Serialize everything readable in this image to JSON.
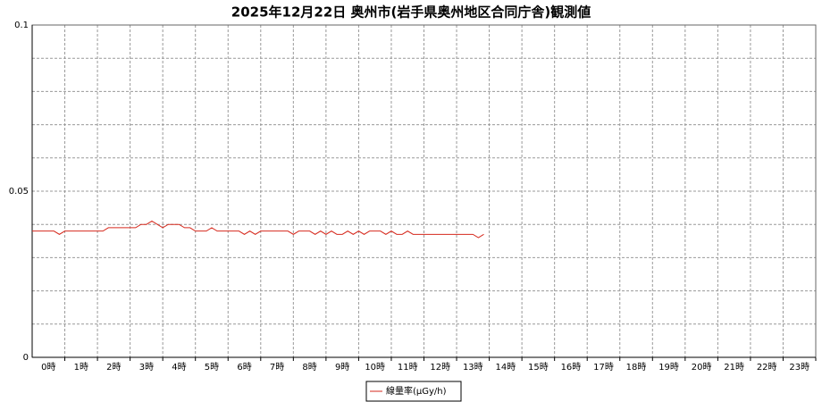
{
  "chart_data": {
    "type": "line",
    "title": "2025年12月22日 奥州市(岩手県奥州地区合同庁舎)観測値",
    "categories": [
      "0時",
      "1時",
      "2時",
      "3時",
      "4時",
      "5時",
      "6時",
      "7時",
      "8時",
      "9時",
      "10時",
      "11時",
      "12時",
      "13時",
      "14時",
      "15時",
      "16時",
      "17時",
      "18時",
      "19時",
      "20時",
      "21時",
      "22時",
      "23時"
    ],
    "xlim": [
      0,
      1440
    ],
    "x": [
      0,
      10,
      20,
      30,
      40,
      50,
      60,
      70,
      80,
      90,
      100,
      110,
      120,
      130,
      140,
      150,
      160,
      170,
      180,
      190,
      200,
      210,
      220,
      230,
      240,
      250,
      260,
      270,
      280,
      290,
      300,
      310,
      320,
      330,
      340,
      350,
      360,
      370,
      380,
      390,
      400,
      410,
      420,
      430,
      440,
      450,
      460,
      470,
      480,
      490,
      500,
      510,
      520,
      530,
      540,
      550,
      560,
      570,
      580,
      590,
      600,
      610,
      620,
      630,
      640,
      650,
      660,
      670,
      680,
      690,
      700,
      710,
      720,
      730,
      740,
      750,
      760,
      770,
      780,
      790,
      800,
      810,
      820,
      830
    ],
    "series": [
      {
        "name": "線量率(μGy/h)",
        "color": "#d62a1e",
        "values": [
          0.038,
          0.038,
          0.038,
          0.038,
          0.038,
          0.037,
          0.038,
          0.038,
          0.038,
          0.038,
          0.038,
          0.038,
          0.038,
          0.038,
          0.039,
          0.039,
          0.039,
          0.039,
          0.039,
          0.039,
          0.04,
          0.04,
          0.041,
          0.04,
          0.039,
          0.04,
          0.04,
          0.04,
          0.039,
          0.039,
          0.038,
          0.038,
          0.038,
          0.039,
          0.038,
          0.038,
          0.038,
          0.038,
          0.038,
          0.037,
          0.038,
          0.037,
          0.038,
          0.038,
          0.038,
          0.038,
          0.038,
          0.038,
          0.037,
          0.038,
          0.038,
          0.038,
          0.037,
          0.038,
          0.037,
          0.038,
          0.037,
          0.037,
          0.038,
          0.037,
          0.038,
          0.037,
          0.038,
          0.038,
          0.038,
          0.037,
          0.038,
          0.037,
          0.037,
          0.038,
          0.037,
          0.037,
          0.037,
          0.037,
          0.037,
          0.037,
          0.037,
          0.037,
          0.037,
          0.037,
          0.037,
          0.037,
          0.036,
          0.037
        ]
      }
    ],
    "ylim": [
      0,
      0.1
    ],
    "yticks": [
      0,
      0.05,
      0.1
    ],
    "minor_yticks": [
      0.01,
      0.02,
      0.03,
      0.04,
      0.06,
      0.07,
      0.08,
      0.09
    ],
    "grid": true,
    "legend": "bottom"
  }
}
